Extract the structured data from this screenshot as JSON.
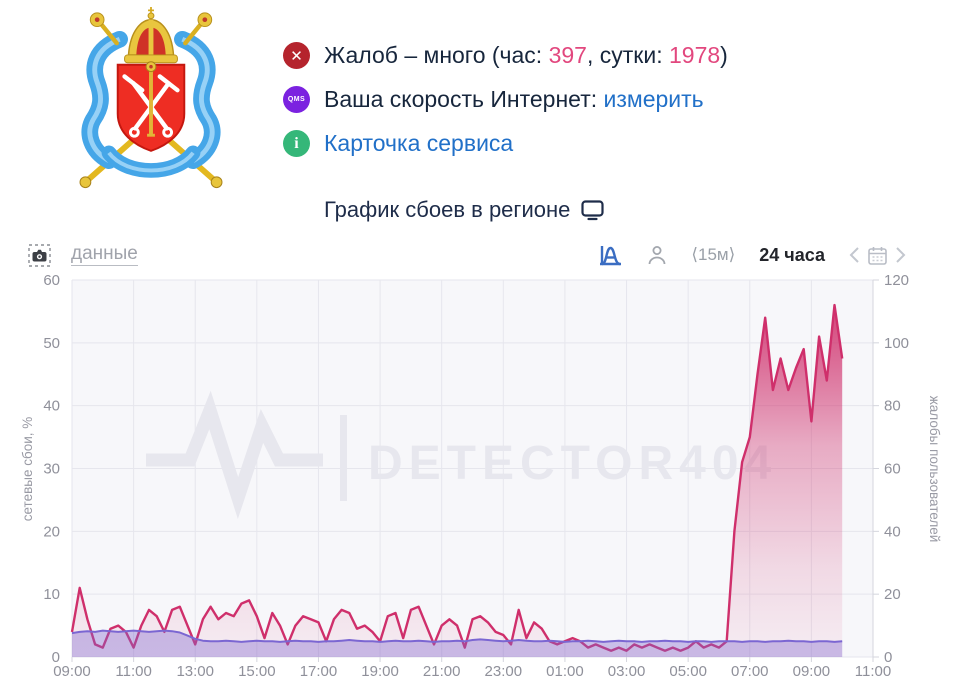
{
  "header": {
    "badges": {
      "alert_glyph": "✕",
      "qms_label": "QMS",
      "info_glyph": "i"
    },
    "status": {
      "complaints": {
        "prefix": "Жалоб – много (час: ",
        "hour": "397",
        "mid": ", сутки: ",
        "day": "1978",
        "suffix": ")"
      },
      "speed": {
        "label": "Ваша скорость Интернет: ",
        "link": "измерить"
      },
      "service": {
        "link": "Карточка сервиса"
      }
    },
    "chart_title": "График сбоев в регионе"
  },
  "toolbar": {
    "data_link": "данные",
    "interval": "⟨15м⟩",
    "range": "24 часа"
  },
  "colors": {
    "complaints_line": "#cf2f6b",
    "failures_line": "#7b66d2",
    "grid": "#e6e6ed",
    "plot_bg": "#f7f7fa",
    "axis_text": "#8f909a",
    "watermark": "#e7e7ee"
  },
  "chart_data": {
    "type": "area",
    "title": "График сбоев в регионе",
    "watermark": "DETECTOR404",
    "time_start": "09:00",
    "step_minutes": 15,
    "x_hours_span": 26,
    "x_tick_labels": [
      "09:00",
      "11:00",
      "13:00",
      "15:00",
      "17:00",
      "19:00",
      "21:00",
      "23:00",
      "01:00",
      "03:00",
      "05:00",
      "07:00",
      "09:00",
      "11:00"
    ],
    "left_axis": {
      "title": "сетевые сбои, %",
      "min": 0,
      "max": 60,
      "tick_step": 10
    },
    "right_axis": {
      "title": "жалобы пользователей",
      "min": 0,
      "max": 120,
      "tick_step": 20
    },
    "series": [
      {
        "name": "жалобы пользователей",
        "axis": "right",
        "color": "#cf2f6b",
        "values": [
          8,
          22,
          12,
          4,
          3,
          9,
          10,
          8,
          3,
          10,
          15,
          13,
          8,
          15,
          16,
          10,
          4,
          12,
          16,
          12,
          14,
          13,
          17,
          18,
          13,
          6,
          14,
          10,
          4,
          10,
          13,
          12,
          11,
          5,
          12,
          15,
          14,
          9,
          10,
          8,
          5,
          13,
          14,
          6,
          15,
          16,
          10,
          4,
          10,
          12,
          10,
          3,
          12,
          13,
          11,
          8,
          7,
          4,
          15,
          6,
          11,
          9,
          5,
          4,
          5,
          6,
          5,
          3,
          4,
          3,
          2,
          3,
          2,
          4,
          3,
          4,
          3,
          2,
          3,
          2,
          3,
          5,
          3,
          4,
          3,
          5,
          40,
          62,
          70,
          90,
          108,
          85,
          95,
          85,
          92,
          98,
          75,
          102,
          88,
          112,
          95
        ]
      },
      {
        "name": "сетевые сбои, %",
        "axis": "left",
        "color": "#7b66d2",
        "values": [
          3.8,
          4.0,
          4.1,
          4.0,
          4.2,
          4.1,
          4.0,
          4.1,
          4.2,
          4.1,
          4.0,
          4.1,
          4.2,
          4.1,
          3.9,
          3.4,
          2.9,
          2.6,
          2.5,
          2.5,
          2.6,
          2.5,
          2.4,
          2.5,
          2.6,
          2.5,
          2.5,
          2.4,
          2.5,
          2.6,
          2.5,
          2.5,
          2.4,
          2.5,
          2.5,
          2.6,
          2.7,
          2.6,
          2.5,
          2.5,
          2.4,
          2.5,
          2.6,
          2.5,
          2.5,
          2.6,
          2.5,
          2.4,
          2.5,
          2.5,
          2.6,
          2.5,
          2.7,
          2.8,
          2.7,
          2.6,
          2.5,
          2.6,
          2.7,
          2.6,
          2.5,
          2.5,
          2.6,
          2.5,
          2.4,
          2.5,
          2.5,
          2.6,
          2.5,
          2.4,
          2.5,
          2.6,
          2.5,
          2.5,
          2.4,
          2.5,
          2.5,
          2.6,
          2.5,
          2.5,
          2.4,
          2.5,
          2.5,
          2.4,
          2.5,
          2.5,
          2.5,
          2.4,
          2.5,
          2.5,
          2.4,
          2.5,
          2.5,
          2.6,
          2.5,
          2.5,
          2.4,
          2.5,
          2.5,
          2.4,
          2.5
        ]
      }
    ]
  }
}
